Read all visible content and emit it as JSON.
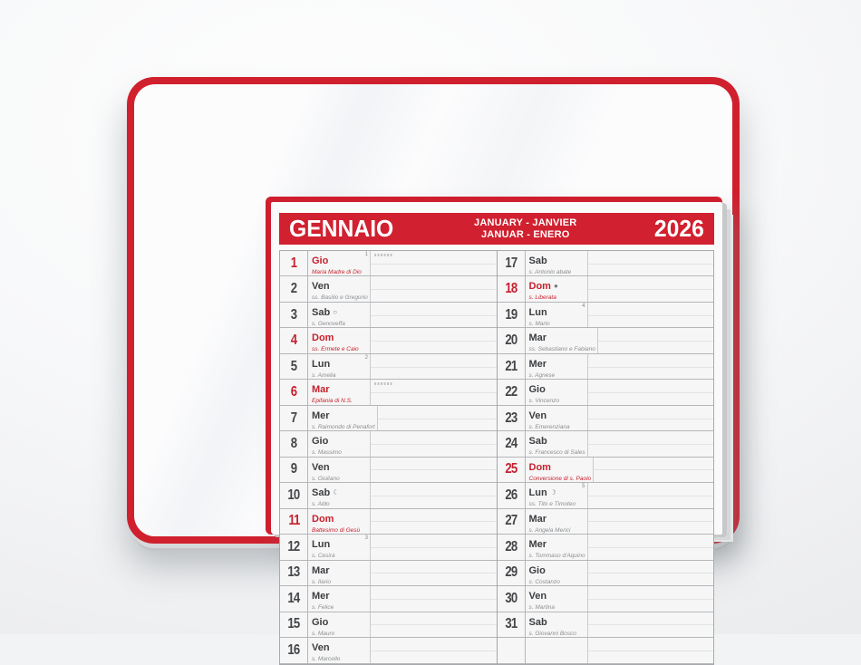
{
  "colors": {
    "accent_red": "#d1202f",
    "paper": "#fafafa",
    "holiday_red": "#c6212f"
  },
  "calendar": {
    "month_title": "GENNAIO",
    "intl_line1": "JANUARY - JANVIER",
    "intl_line2": "JANUAR - ENERO",
    "year": "2026",
    "days_left": [
      {
        "num": "1",
        "name": "Gio",
        "saint": "Maria Madre di Dio",
        "holiday": true,
        "week": "1",
        "mark": true
      },
      {
        "num": "2",
        "name": "Ven",
        "saint": "ss. Basilio e Gregorio"
      },
      {
        "num": "3",
        "name": "Sab",
        "saint": "s. Genoveffa",
        "moon": "○"
      },
      {
        "num": "4",
        "name": "Dom",
        "saint": "ss. Ermete e Caio",
        "holiday": true
      },
      {
        "num": "5",
        "name": "Lun",
        "saint": "s. Amelia",
        "week": "2"
      },
      {
        "num": "6",
        "name": "Mar",
        "saint": "Epifania di N.S.",
        "holiday": true,
        "mark": true
      },
      {
        "num": "7",
        "name": "Mer",
        "saint": "s. Raimondo di Penafort"
      },
      {
        "num": "8",
        "name": "Gio",
        "saint": "s. Massimo"
      },
      {
        "num": "9",
        "name": "Ven",
        "saint": "s. Giuliano"
      },
      {
        "num": "10",
        "name": "Sab",
        "saint": "s. Aldo",
        "moon": "☾"
      },
      {
        "num": "11",
        "name": "Dom",
        "saint": "Battesimo di Gesù",
        "holiday": true
      },
      {
        "num": "12",
        "name": "Lun",
        "saint": "s. Cesira",
        "week": "3"
      },
      {
        "num": "13",
        "name": "Mar",
        "saint": "s. Ilario"
      },
      {
        "num": "14",
        "name": "Mer",
        "saint": "s. Felice"
      },
      {
        "num": "15",
        "name": "Gio",
        "saint": "s. Mauro"
      },
      {
        "num": "16",
        "name": "Ven",
        "saint": "s. Marcello"
      }
    ],
    "days_right": [
      {
        "num": "17",
        "name": "Sab",
        "saint": "s. Antonio abate"
      },
      {
        "num": "18",
        "name": "Dom",
        "saint": "s. Liberata",
        "holiday": true,
        "moon": "●"
      },
      {
        "num": "19",
        "name": "Lun",
        "saint": "s. Mario",
        "week": "4"
      },
      {
        "num": "20",
        "name": "Mar",
        "saint": "ss. Sebastiano e Fabiano"
      },
      {
        "num": "21",
        "name": "Mer",
        "saint": "s. Agnese"
      },
      {
        "num": "22",
        "name": "Gio",
        "saint": "s. Vincenzo"
      },
      {
        "num": "23",
        "name": "Ven",
        "saint": "s. Emerenziana"
      },
      {
        "num": "24",
        "name": "Sab",
        "saint": "s. Francesco di Sales"
      },
      {
        "num": "25",
        "name": "Dom",
        "saint": "Conversione di s. Paolo",
        "holiday": true
      },
      {
        "num": "26",
        "name": "Lun",
        "saint": "ss. Tito e Timoteo",
        "week": "5",
        "moon": "☽"
      },
      {
        "num": "27",
        "name": "Mar",
        "saint": "s. Angela Merici"
      },
      {
        "num": "28",
        "name": "Mer",
        "saint": "s. Tommaso d'Aquino"
      },
      {
        "num": "29",
        "name": "Gio",
        "saint": "s. Costanzo"
      },
      {
        "num": "30",
        "name": "Ven",
        "saint": "s. Martina"
      },
      {
        "num": "31",
        "name": "Sab",
        "saint": "s. Giovanni Bosco"
      },
      {
        "num": "",
        "name": "",
        "saint": ""
      }
    ]
  }
}
